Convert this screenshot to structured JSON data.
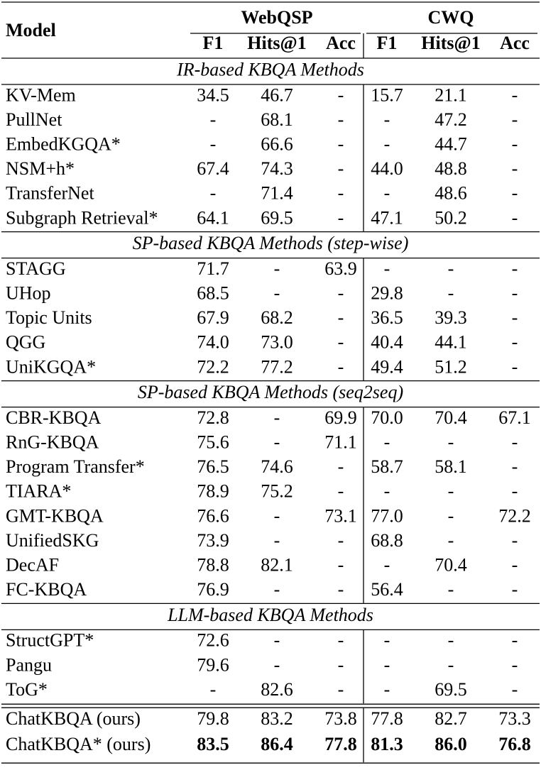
{
  "table": {
    "model_header": "Model",
    "groups": [
      {
        "name": "WebQSP",
        "columns": [
          "F1",
          "Hits@1",
          "Acc"
        ]
      },
      {
        "name": "CWQ",
        "columns": [
          "F1",
          "Hits@1",
          "Acc"
        ]
      }
    ],
    "sections": [
      {
        "title": "IR-based KBQA Methods",
        "rows": [
          [
            "KV-Mem",
            "34.5",
            "46.7",
            "-",
            "15.7",
            "21.1",
            "-"
          ],
          [
            "PullNet",
            "-",
            "68.1",
            "-",
            "-",
            "47.2",
            "-"
          ],
          [
            "EmbedKGQA*",
            "-",
            "66.6",
            "-",
            "-",
            "44.7",
            "-"
          ],
          [
            "NSM+h*",
            "67.4",
            "74.3",
            "-",
            "44.0",
            "48.8",
            "-"
          ],
          [
            "TransferNet",
            "-",
            "71.4",
            "-",
            "-",
            "48.6",
            "-"
          ],
          [
            "Subgraph Retrieval*",
            "64.1",
            "69.5",
            "-",
            "47.1",
            "50.2",
            "-"
          ]
        ]
      },
      {
        "title": "SP-based KBQA Methods (step-wise)",
        "rows": [
          [
            "STAGG",
            "71.7",
            "-",
            "63.9",
            "-",
            "-",
            "-"
          ],
          [
            "UHop",
            "68.5",
            "-",
            "-",
            "29.8",
            "-",
            "-"
          ],
          [
            "Topic Units",
            "67.9",
            "68.2",
            "-",
            "36.5",
            "39.3",
            "-"
          ],
          [
            "QGG",
            "74.0",
            "73.0",
            "-",
            "40.4",
            "44.1",
            "-"
          ],
          [
            "UniKGQA*",
            "72.2",
            "77.2",
            "-",
            "49.4",
            "51.2",
            "-"
          ]
        ]
      },
      {
        "title": "SP-based KBQA Methods (seq2seq)",
        "rows": [
          [
            "CBR-KBQA",
            "72.8",
            "-",
            "69.9",
            "70.0",
            "70.4",
            "67.1"
          ],
          [
            "RnG-KBQA",
            "75.6",
            "-",
            "71.1",
            "-",
            "-",
            "-"
          ],
          [
            "Program Transfer*",
            "76.5",
            "74.6",
            "-",
            "58.7",
            "58.1",
            "-"
          ],
          [
            "TIARA*",
            "78.9",
            "75.2",
            "-",
            "-",
            "-",
            "-"
          ],
          [
            "GMT-KBQA",
            "76.6",
            "-",
            "73.1",
            "77.0",
            "-",
            "72.2"
          ],
          [
            "UnifiedSKG",
            "73.9",
            "-",
            "-",
            "68.8",
            "-",
            "-"
          ],
          [
            "DecAF",
            "78.8",
            "82.1",
            "-",
            "-",
            "70.4",
            "-"
          ],
          [
            "FC-KBQA",
            "76.9",
            "-",
            "-",
            "56.4",
            "-",
            "-"
          ]
        ]
      },
      {
        "title": "LLM-based KBQA Methods",
        "rows": [
          [
            "StructGPT*",
            "72.6",
            "-",
            "-",
            "-",
            "-",
            "-"
          ],
          [
            "Pangu",
            "79.6",
            "-",
            "-",
            "-",
            "-",
            "-"
          ],
          [
            "ToG*",
            "-",
            "82.6",
            "-",
            "-",
            "69.5",
            "-"
          ]
        ]
      }
    ],
    "final_rows": [
      [
        "ChatKBQA (ours)",
        "79.8",
        "83.2",
        "73.8",
        "77.8",
        "82.7",
        "73.3"
      ],
      [
        "ChatKBQA* (ours)",
        "83.5",
        "86.4",
        "77.8",
        "81.3",
        "86.0",
        "76.8"
      ]
    ]
  }
}
